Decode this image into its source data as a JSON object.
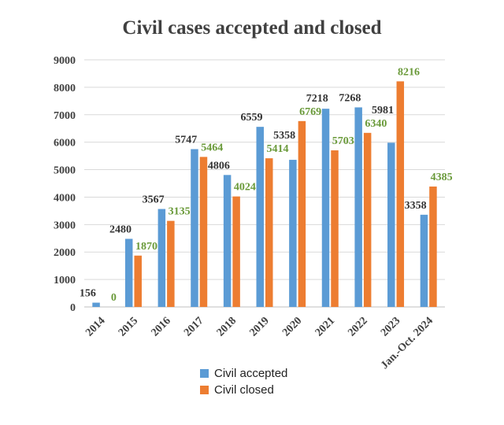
{
  "chart_data": {
    "type": "bar",
    "title": "Civil cases accepted and closed",
    "xlabel": "",
    "ylabel": "",
    "ylim": [
      0,
      9000
    ],
    "yticks": [
      0,
      1000,
      2000,
      3000,
      4000,
      5000,
      6000,
      7000,
      8000,
      9000
    ],
    "grid": true,
    "legend_position": "bottom",
    "categories": [
      "2014",
      "2015",
      "2016",
      "2017",
      "2018",
      "2019",
      "2020",
      "2021",
      "2022",
      "2023",
      "Jan.-Oct. 2024"
    ],
    "series": [
      {
        "name": "Civil accepted",
        "color": "#5b9bd5",
        "label_color": "#333333",
        "values": [
          156,
          2480,
          3567,
          5747,
          4806,
          6559,
          5358,
          7218,
          7268,
          5981,
          3358
        ]
      },
      {
        "name": "Civil closed",
        "color": "#ed7d31",
        "label_color": "#6a9a3a",
        "values": [
          0,
          1870,
          3135,
          5464,
          4024,
          5414,
          6769,
          5703,
          6340,
          8216,
          4385
        ]
      }
    ]
  }
}
